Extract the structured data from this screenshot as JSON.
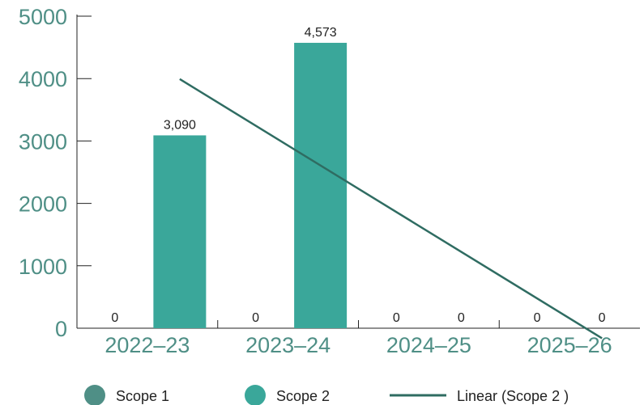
{
  "chart_data": {
    "type": "bar",
    "categories": [
      "2022–23",
      "2023–24",
      "2024–25",
      "2025–26"
    ],
    "series": [
      {
        "name": "Scope 1",
        "values": [
          0,
          0,
          0,
          0
        ],
        "labels": [
          "0",
          "0",
          "0",
          "0"
        ],
        "color": "#4f8f86"
      },
      {
        "name": "Scope 2",
        "values": [
          3090,
          4573,
          0,
          0
        ],
        "labels": [
          "3,090",
          "4,573",
          "0",
          "0"
        ],
        "color": "#3aa79a"
      }
    ],
    "trendline": {
      "name": "Linear (Scope 2 )",
      "series": "Scope 2",
      "color": "#2f6c62"
    },
    "ylim": [
      0,
      5000
    ],
    "yticks": [
      0,
      1000,
      2000,
      3000,
      4000,
      5000
    ],
    "ytick_labels": [
      "0",
      "1000",
      "2000",
      "3000",
      "4000",
      "5000"
    ],
    "title": "",
    "xlabel": "",
    "ylabel": "",
    "legend": {
      "position": "bottom",
      "entries": [
        "Scope 1",
        "Scope 2",
        "Linear (Scope 2 )"
      ]
    },
    "grid": false
  },
  "colors": {
    "axis_text": "#4f8f86",
    "value_label": "#222222",
    "axis_line": "#222222"
  }
}
